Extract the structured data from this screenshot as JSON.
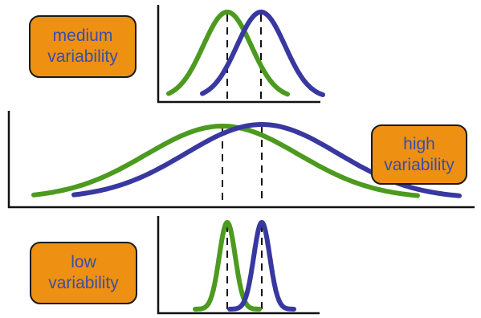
{
  "labels": {
    "medium": [
      "medium",
      "variability"
    ],
    "high": [
      "high",
      "variability"
    ],
    "low": [
      "low",
      "variability"
    ]
  },
  "colors": {
    "green_curve": "#4c9a1f",
    "blue_curve": "#3838a0",
    "axis": "#111111",
    "label_fill": "#ee9012",
    "label_text": "#3a4ea8"
  },
  "panels": [
    {
      "name": "medium",
      "green": {
        "mean": 283,
        "sd": 30
      },
      "blue": {
        "mean": 325,
        "sd": 30
      }
    },
    {
      "name": "high",
      "green": {
        "mean": 277,
        "sd": 95
      },
      "blue": {
        "mean": 326,
        "sd": 95
      }
    },
    {
      "name": "low",
      "green": {
        "mean": 283,
        "sd": 10
      },
      "blue": {
        "mean": 326,
        "sd": 10
      }
    }
  ]
}
